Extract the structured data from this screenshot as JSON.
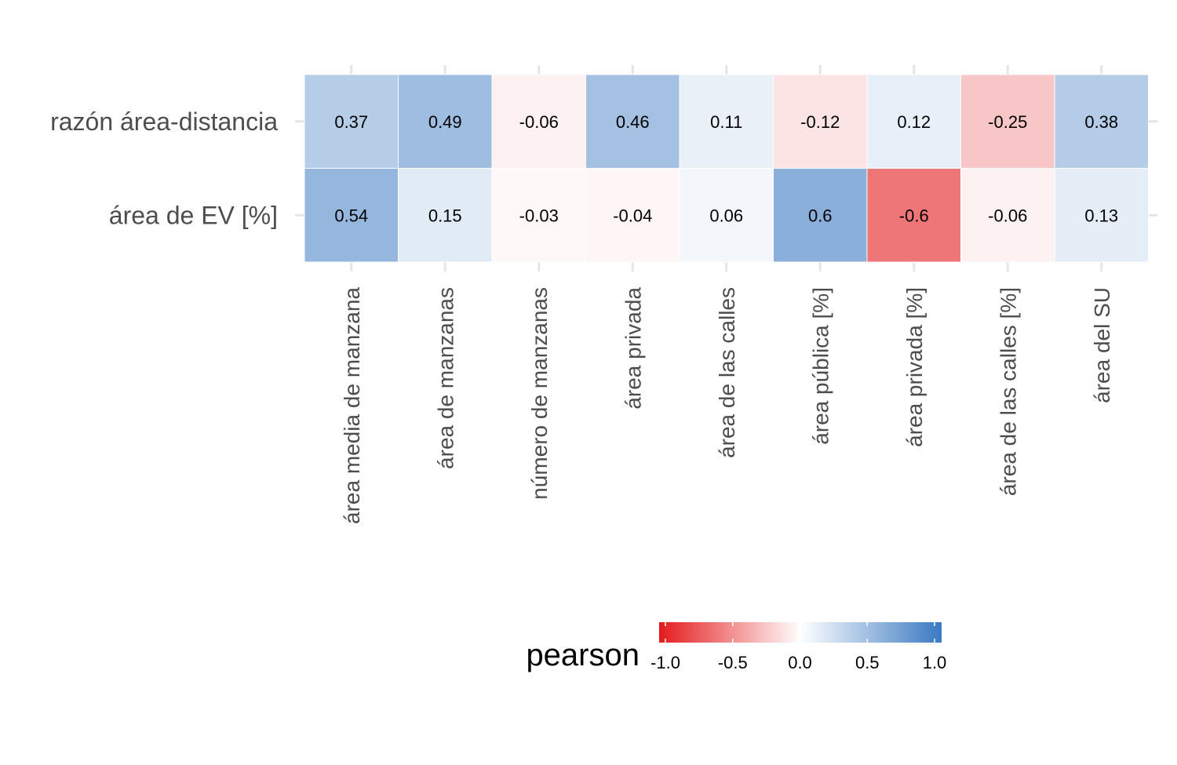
{
  "chart_data": {
    "type": "heatmap",
    "title": "",
    "xlabel": "",
    "ylabel": "",
    "rows": [
      "razón área-distancia",
      "área de EV [%]"
    ],
    "columns": [
      "área media de manzana",
      "área de manzanas",
      "número de manzanas",
      "área privada",
      "área de las calles",
      "área pública [%]",
      "área privada [%]",
      "área de las calles [%]",
      "área del SU"
    ],
    "values": [
      [
        0.37,
        0.49,
        -0.06,
        0.46,
        0.11,
        -0.12,
        0.12,
        -0.25,
        0.38
      ],
      [
        0.54,
        0.15,
        -0.03,
        -0.04,
        0.06,
        0.6,
        -0.6,
        -0.06,
        0.13
      ]
    ],
    "value_labels": [
      [
        "0.37",
        "0.49",
        "-0.06",
        "0.46",
        "0.11",
        "-0.12",
        "0.12",
        "-0.25",
        "0.38"
      ],
      [
        "0.54",
        "0.15",
        "-0.03",
        "-0.04",
        "0.06",
        "0.6",
        "-0.6",
        "-0.06",
        "0.13"
      ]
    ],
    "legend": {
      "title": "pearson",
      "position": "bottom",
      "range": [
        -1.0,
        1.0
      ],
      "ticks": [
        -1.0,
        -0.5,
        0.0,
        0.5,
        1.0
      ],
      "tick_labels": [
        "-1.0",
        "-0.5",
        "0.0",
        "0.5",
        "1.0"
      ],
      "colors": {
        "low": "#e41a1c",
        "mid": "#ffffff",
        "high": "#3a79c2"
      }
    }
  }
}
